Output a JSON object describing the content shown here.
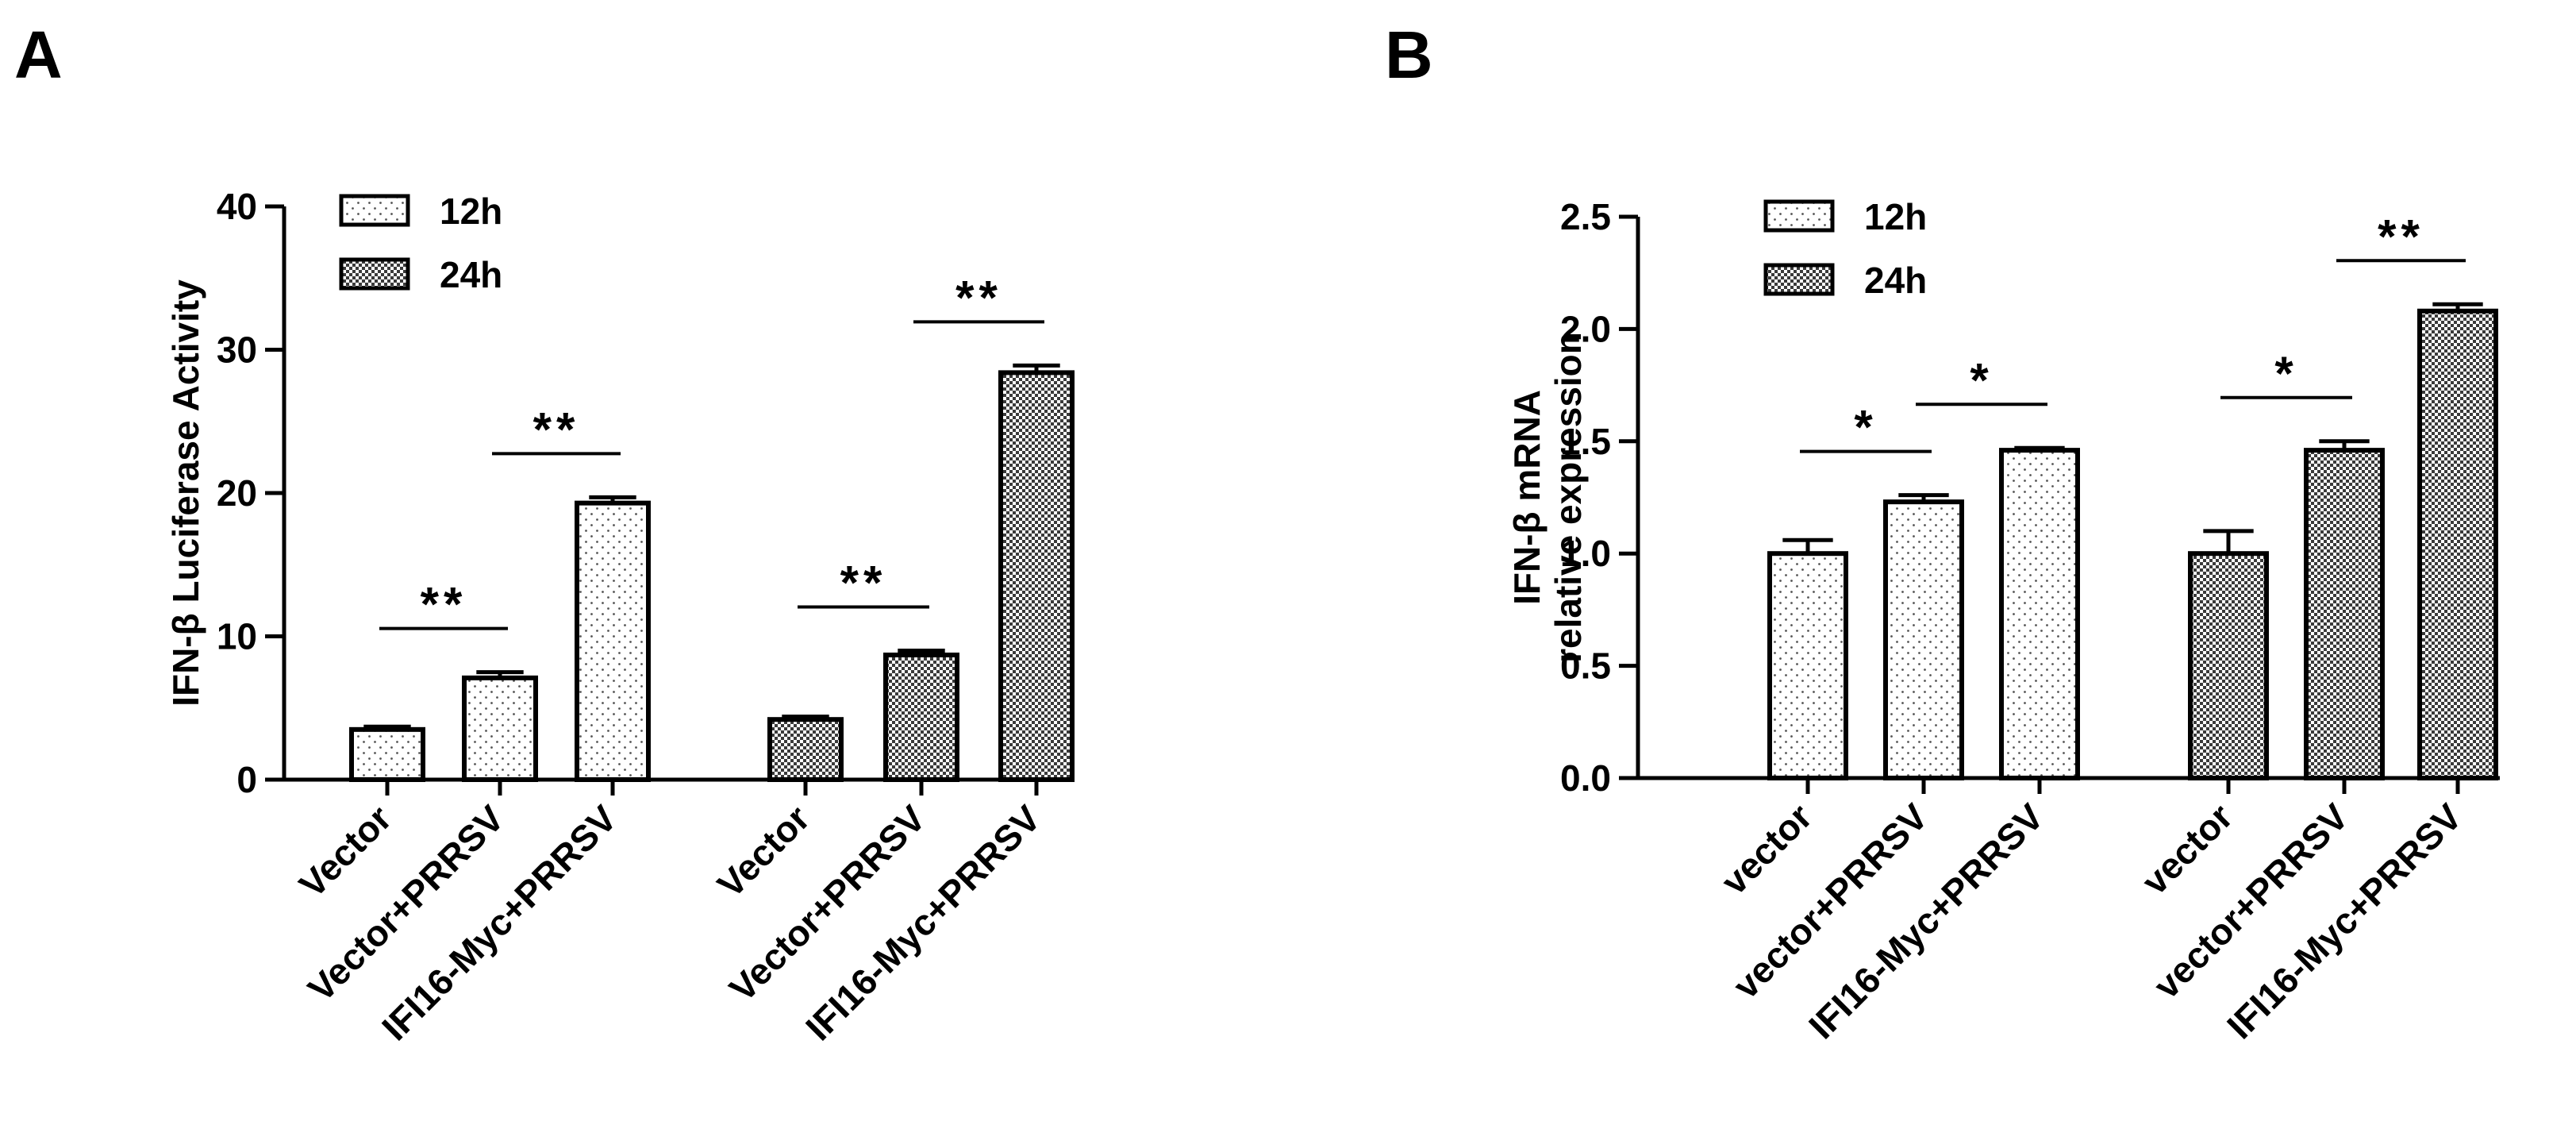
{
  "chart_data": [
    {
      "panel": "A",
      "type": "bar",
      "ylabel": "IFN-β  Luciferase Activity",
      "ylim": [
        0,
        40
      ],
      "yticks": [
        0,
        10,
        20,
        30,
        40
      ],
      "legend": {
        "placement": "top-left",
        "entries": [
          "12h",
          "24h"
        ]
      },
      "groups": [
        {
          "series": "12h",
          "categories": [
            "Vector",
            "Vector+PRRSV",
            "IFI16-Myc+PRRSV"
          ],
          "values": [
            3.5,
            7.1,
            19.3
          ],
          "errors": [
            0.2,
            0.4,
            0.4
          ]
        },
        {
          "series": "24h",
          "categories": [
            "Vector",
            "Vector+PRRSV",
            "IFI16-Myc+PRRSV"
          ],
          "values": [
            4.2,
            8.7,
            28.4
          ],
          "errors": [
            0.2,
            0.3,
            0.5
          ]
        }
      ],
      "significance": [
        {
          "group": 0,
          "from": 0,
          "to": 1,
          "label": "**"
        },
        {
          "group": 0,
          "from": 1,
          "to": 2,
          "label": "**"
        },
        {
          "group": 1,
          "from": 0,
          "to": 1,
          "label": "**"
        },
        {
          "group": 1,
          "from": 1,
          "to": 2,
          "label": "**"
        }
      ]
    },
    {
      "panel": "B",
      "type": "bar",
      "ylabel": [
        "IFN-β  mRNA",
        "relative expression"
      ],
      "ylim": [
        0,
        2.5
      ],
      "yticks": [
        "0.0",
        "0.5",
        "1.0",
        "1.5",
        "2.0",
        "2.5"
      ],
      "legend": {
        "placement": "top-left",
        "entries": [
          "12h",
          "24h"
        ]
      },
      "groups": [
        {
          "series": "12h",
          "categories": [
            "vector",
            "vector+PRRSV",
            "IFI16-Myc+PRRSV"
          ],
          "values": [
            1.0,
            1.23,
            1.46
          ],
          "errors": [
            0.06,
            0.03,
            0.01
          ]
        },
        {
          "series": "24h",
          "categories": [
            "vector",
            "vector+PRRSV",
            "IFI16-Myc+PRRSV"
          ],
          "values": [
            1.0,
            1.46,
            2.08
          ],
          "errors": [
            0.1,
            0.04,
            0.03
          ]
        }
      ],
      "significance": [
        {
          "group": 0,
          "from": 0,
          "to": 1,
          "label": "*"
        },
        {
          "group": 0,
          "from": 1,
          "to": 2,
          "label": "*"
        },
        {
          "group": 1,
          "from": 0,
          "to": 1,
          "label": "*"
        },
        {
          "group": 1,
          "from": 1,
          "to": 2,
          "label": "**"
        }
      ]
    }
  ]
}
